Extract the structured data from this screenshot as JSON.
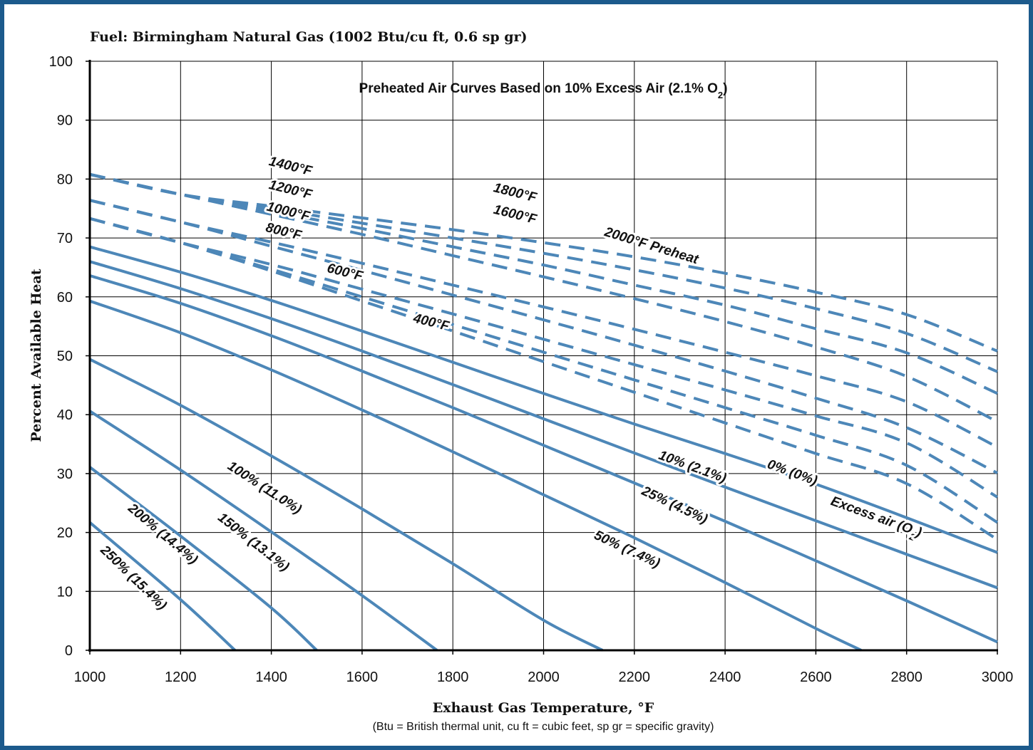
{
  "chart_data": {
    "type": "line",
    "fuel_title": "Fuel: Birmingham Natural Gas (1002 Btu/cu ft, 0.6 sp gr)",
    "inner_title": "Preheated Air Curves Based on 10% Excess Air (2.1% O",
    "inner_title_sub": "2",
    "inner_title_end": ")",
    "xlabel": "Exhaust Gas Temperature, °F",
    "ylabel": "Percent Available Heat",
    "note": "(Btu = British thermal unit, cu ft = cubic feet, sp gr = specific gravity)",
    "xlim": [
      1000,
      3000
    ],
    "ylim": [
      0,
      100
    ],
    "xticks": [
      "1000",
      "1200",
      "1400",
      "1600",
      "1800",
      "2000",
      "2200",
      "2400",
      "2600",
      "2800",
      "3000"
    ],
    "yticks": [
      "0",
      "10",
      "20",
      "30",
      "40",
      "50",
      "60",
      "70",
      "80",
      "90",
      "100"
    ],
    "grid": true,
    "colors": {
      "line": "#4d87b8",
      "frame": "#1c5a8c",
      "grid": "#000000"
    },
    "series": [
      {
        "name": "0% (0%)",
        "style": "solid",
        "x": [
          1000,
          1200,
          1400,
          1600,
          1800,
          2000,
          2200,
          2400,
          2600,
          2800,
          3000
        ],
        "y": [
          68.5,
          64.2,
          59.4,
          54.2,
          48.9,
          43.6,
          38.4,
          33.4,
          28.2,
          22.5,
          16.6
        ]
      },
      {
        "name": "10% (2.1%)",
        "style": "solid",
        "x": [
          1000,
          1200,
          1400,
          1600,
          1800,
          2000,
          2200,
          2400,
          2600,
          2800,
          3000
        ],
        "y": [
          66.0,
          61.4,
          56.3,
          50.8,
          45.1,
          39.3,
          33.5,
          27.7,
          22.0,
          16.3,
          10.6
        ]
      },
      {
        "name": "25% (4.5%)",
        "style": "solid",
        "x": [
          1000,
          1200,
          1400,
          1600,
          1800,
          2000,
          2200,
          2400,
          2600,
          2800,
          3000
        ],
        "y": [
          63.6,
          58.9,
          53.4,
          47.4,
          41.2,
          34.8,
          28.4,
          21.9,
          15.2,
          8.4,
          1.4
        ]
      },
      {
        "name": "50% (7.4%)",
        "style": "solid",
        "x": [
          1000,
          1200,
          1400,
          1600,
          1800,
          2000,
          2200,
          2400,
          2600,
          2700
        ],
        "y": [
          59.3,
          53.9,
          47.6,
          40.8,
          33.7,
          26.4,
          19.1,
          11.5,
          3.7,
          0
        ]
      },
      {
        "name": "100% (11.0%)",
        "style": "solid",
        "x": [
          1000,
          1200,
          1400,
          1600,
          1800,
          2000,
          2130
        ],
        "y": [
          49.4,
          41.6,
          33.0,
          24.0,
          14.7,
          5.1,
          0
        ]
      },
      {
        "name": "150% (13.1%)",
        "style": "solid",
        "x": [
          1000,
          1200,
          1400,
          1600,
          1765
        ],
        "y": [
          40.6,
          30.6,
          20.1,
          9.3,
          0
        ]
      },
      {
        "name": "200% (14.4%)",
        "style": "solid",
        "x": [
          1000,
          1200,
          1400,
          1500
        ],
        "y": [
          31.1,
          19.4,
          7.2,
          0
        ]
      },
      {
        "name": "250% (15.4%)",
        "style": "solid",
        "x": [
          1000,
          1200,
          1320
        ],
        "y": [
          21.7,
          8.6,
          0
        ]
      },
      {
        "name": "400°F",
        "style": "dashed",
        "x": [
          1000,
          1200,
          1400,
          1600,
          1800,
          2000,
          2200,
          2400,
          2600,
          2800,
          3000
        ],
        "y": [
          73.3,
          69.2,
          64.4,
          59.3,
          54.2,
          49.0,
          43.8,
          38.6,
          33.4,
          28.3,
          18.8
        ]
      },
      {
        "name": "600°F",
        "style": "dashed",
        "x": [
          1000,
          1200,
          1400,
          1600,
          1800,
          2000,
          2200,
          2400,
          2600,
          2800,
          3000
        ],
        "y": [
          73.3,
          69.2,
          64.7,
          60.0,
          55.3,
          50.6,
          45.9,
          41.2,
          36.5,
          31.4,
          21.7
        ]
      },
      {
        "name": "800°F",
        "style": "dashed",
        "x": [
          1000,
          1200,
          1400,
          1600,
          1800,
          2000,
          2200,
          2400,
          2600,
          2800,
          3000
        ],
        "y": [
          73.3,
          69.2,
          65.5,
          61.3,
          57.1,
          52.8,
          48.5,
          44.2,
          39.8,
          35.2,
          26.0
        ]
      },
      {
        "name": "1000°F",
        "style": "dashed",
        "x": [
          1000,
          1200,
          1400,
          1600,
          1800,
          2000,
          2200,
          2400,
          2600,
          2800,
          3000
        ],
        "y": [
          76.4,
          72.7,
          68.6,
          64.5,
          60.3,
          56.1,
          51.8,
          47.4,
          42.8,
          37.8,
          30.1
        ]
      },
      {
        "name": "1200°F",
        "style": "dashed",
        "x": [
          1000,
          1200,
          1400,
          1600,
          1800,
          2000,
          2200,
          2400,
          2600,
          2800,
          3000
        ],
        "y": [
          76.4,
          72.7,
          69.3,
          65.7,
          62.0,
          58.3,
          54.5,
          50.6,
          46.6,
          42.2,
          34.5
        ]
      },
      {
        "name": "1400°F",
        "style": "dashed",
        "x": [
          1000,
          1200,
          1400,
          1600,
          1800,
          2000,
          2200,
          2400,
          2600,
          2800,
          3000
        ],
        "y": [
          80.8,
          77.4,
          74.0,
          70.6,
          67.0,
          63.4,
          59.7,
          55.8,
          51.5,
          46.5,
          38.8
        ]
      },
      {
        "name": "1600°F",
        "style": "dashed",
        "x": [
          1000,
          1200,
          1400,
          1600,
          1800,
          2000,
          2200,
          2400,
          2600,
          2800,
          3000
        ],
        "y": [
          80.8,
          77.4,
          74.5,
          71.6,
          68.5,
          65.4,
          62.0,
          58.6,
          54.6,
          50.5,
          43.6
        ]
      },
      {
        "name": "1800°F",
        "style": "dashed",
        "x": [
          1000,
          1200,
          1400,
          1600,
          1800,
          2000,
          2200,
          2400,
          2600,
          2800,
          3000
        ],
        "y": [
          80.8,
          77.4,
          75.0,
          72.5,
          70.0,
          67.4,
          64.6,
          61.5,
          58.0,
          53.8,
          47.3
        ]
      },
      {
        "name": "2000°F Preheat",
        "style": "dashed",
        "x": [
          1000,
          1200,
          1400,
          1600,
          1800,
          2000,
          2200,
          2400,
          2600,
          2800,
          3000
        ],
        "y": [
          80.8,
          77.4,
          75.4,
          73.4,
          71.4,
          69.2,
          66.8,
          64.0,
          60.8,
          57.0,
          50.8
        ]
      }
    ],
    "annotations": [
      {
        "text": "1400°F",
        "x": 1440,
        "y": 81.5,
        "angle": 14
      },
      {
        "text": "1200°F",
        "x": 1440,
        "y": 77.5,
        "angle": 14
      },
      {
        "text": "1000°F",
        "x": 1435,
        "y": 73.8,
        "angle": 14
      },
      {
        "text": "800°F",
        "x": 1425,
        "y": 70.4,
        "angle": 14
      },
      {
        "text": "600°F",
        "x": 1560,
        "y": 63.5,
        "angle": 14
      },
      {
        "text": "400°F",
        "x": 1750,
        "y": 55.0,
        "angle": 14
      },
      {
        "text": "1800°F",
        "x": 1935,
        "y": 77.0,
        "angle": 14
      },
      {
        "text": "1600°F",
        "x": 1935,
        "y": 73.3,
        "angle": 14
      },
      {
        "text": "2000°F Preheat",
        "x": 2235,
        "y": 68.0,
        "angle": 17
      },
      {
        "text": "10% (2.1%)",
        "x": 2325,
        "y": 30.5,
        "angle": 20
      },
      {
        "text": "0% (0%)",
        "x": 2545,
        "y": 29.5,
        "angle": 20
      },
      {
        "text": "Excess air (O",
        "sub": "2",
        "end": ")",
        "x": 2730,
        "y": 22.0,
        "angle": 20
      },
      {
        "text": "25% (4.5%)",
        "x": 2285,
        "y": 24.0,
        "angle": 25
      },
      {
        "text": "50% (7.4%)",
        "x": 2180,
        "y": 16.5,
        "angle": 25
      },
      {
        "text": "100% (11.0%)",
        "x": 1380,
        "y": 27.0,
        "angle": 33
      },
      {
        "text": "150% (13.1%)",
        "x": 1355,
        "y": 17.8,
        "angle": 38
      },
      {
        "text": "200% (14.4%)",
        "x": 1155,
        "y": 19.2,
        "angle": 40
      },
      {
        "text": "250% (15.4%)",
        "x": 1090,
        "y": 11.8,
        "angle": 44
      }
    ]
  }
}
